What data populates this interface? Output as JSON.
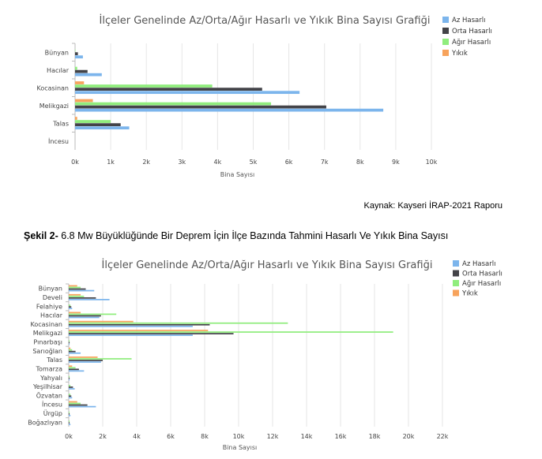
{
  "source_text": "Kaynak: Kayseri İRAP-2021 Raporu",
  "caption": {
    "prefix": "Şekil 2-",
    "text": " 6.8 Mw Büyüklüğünde  Bir Deprem  İçin İlçe Bazında Tahmini Hasarlı Ve Yıkık Bina Sayısı"
  },
  "colors": {
    "az": "#7cb5ec",
    "orta": "#434348",
    "agir": "#90ed7d",
    "yikik": "#f7a35c"
  },
  "chart_data": [
    {
      "type": "bar",
      "orientation": "horizontal",
      "title": "İlçeler Genelinde Az/Orta/Ağır Hasarlı ve Yıkık Bina Sayısı Grafiği",
      "xlabel": "Bina Sayısı",
      "ylabel": "",
      "xlim": [
        0,
        10000
      ],
      "xticks": [
        0,
        1000,
        2000,
        3000,
        4000,
        5000,
        6000,
        7000,
        8000,
        9000,
        10000
      ],
      "xtick_labels": [
        "0k",
        "1k",
        "2k",
        "3k",
        "4k",
        "5k",
        "6k",
        "7k",
        "8k",
        "9k",
        "10k"
      ],
      "grid": true,
      "legend_position": "top-right",
      "categories": [
        "Bünyan",
        "Hacılar",
        "Kocasinan",
        "Melikgazi",
        "Talas",
        "İncesu"
      ],
      "series": [
        {
          "name": "Yıkık",
          "color_key": "yikik",
          "values": [
            0,
            0,
            250,
            500,
            60,
            0
          ]
        },
        {
          "name": "Ağır Hasarlı",
          "color_key": "agir",
          "values": [
            10,
            60,
            3850,
            5500,
            1000,
            0
          ]
        },
        {
          "name": "Orta Hasarlı",
          "color_key": "orta",
          "values": [
            80,
            350,
            5250,
            7050,
            1280,
            0
          ]
        },
        {
          "name": "Az Hasarlı",
          "color_key": "az",
          "values": [
            220,
            750,
            6300,
            8650,
            1520,
            0
          ]
        }
      ],
      "legend": [
        "Az Hasarlı",
        "Orta Hasarlı",
        "Ağır Hasarlı",
        "Yıkık"
      ]
    },
    {
      "type": "bar",
      "orientation": "horizontal",
      "title": "İlçeler Genelinde Az/Orta/Ağır Hasarlı ve Yıkık Bina Sayısı Grafiği",
      "xlabel": "Bina Sayısı",
      "ylabel": "",
      "xlim": [
        0,
        22000
      ],
      "xticks": [
        0,
        2000,
        4000,
        6000,
        8000,
        10000,
        12000,
        14000,
        16000,
        18000,
        20000,
        22000
      ],
      "xtick_labels": [
        "0k",
        "2k",
        "4k",
        "6k",
        "8k",
        "10k",
        "12k",
        "14k",
        "16k",
        "18k",
        "20k",
        "22k"
      ],
      "grid": true,
      "legend_position": "top-right",
      "categories": [
        "Bünyan",
        "Develi",
        "Felahiye",
        "Hacılar",
        "Kocasinan",
        "Melikgazi",
        "Pınarbaşı",
        "Sarıoğlan",
        "Talas",
        "Tomarza",
        "Yahyalı",
        "Yeşilhisar",
        "Özvatan",
        "İncesu",
        "Ürgüp",
        "Boğazlıyan"
      ],
      "series": [
        {
          "name": "Yıkık",
          "color_key": "yikik",
          "values": [
            500,
            700,
            0,
            700,
            3800,
            8200,
            0,
            100,
            1700,
            200,
            0,
            0,
            0,
            500,
            0,
            0
          ]
        },
        {
          "name": "Ağır Hasarlı",
          "color_key": "agir",
          "values": [
            700,
            900,
            100,
            2800,
            12900,
            19100,
            50,
            200,
            3700,
            400,
            50,
            100,
            100,
            700,
            50,
            50
          ]
        },
        {
          "name": "Orta Hasarlı",
          "color_key": "orta",
          "values": [
            1000,
            1600,
            150,
            1900,
            8300,
            9700,
            50,
            400,
            2000,
            600,
            50,
            250,
            150,
            1100,
            50,
            50
          ]
        },
        {
          "name": "Az Hasarlı",
          "color_key": "az",
          "values": [
            1500,
            2400,
            200,
            1800,
            7300,
            7300,
            50,
            700,
            1900,
            900,
            50,
            350,
            200,
            1600,
            100,
            100
          ]
        }
      ],
      "legend": [
        "Az Hasarlı",
        "Orta Hasarlı",
        "Ağır Hasarlı",
        "Yıkık"
      ]
    }
  ]
}
